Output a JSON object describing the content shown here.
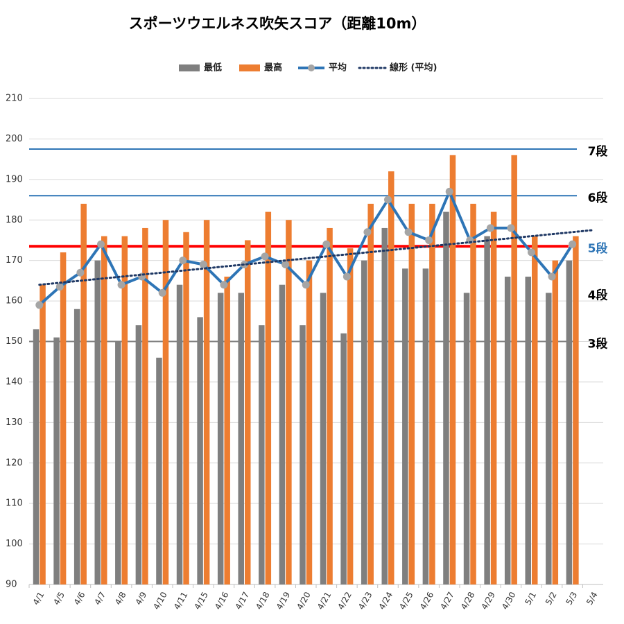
{
  "chart_data": {
    "type": "bar",
    "title": "スポーツウエルネス吹矢スコア（距離10m）",
    "categories": [
      "4/1",
      "4/5",
      "4/6",
      "4/7",
      "4/8",
      "4/9",
      "4/10",
      "4/11",
      "4/15",
      "4/16",
      "4/17",
      "4/18",
      "4/19",
      "4/20",
      "4/21",
      "4/22",
      "4/23",
      "4/24",
      "4/25",
      "4/26",
      "4/27",
      "4/28",
      "4/29",
      "4/30",
      "5/1",
      "5/2",
      "5/3",
      "5/4"
    ],
    "series": [
      {
        "name": "最低",
        "type": "bar",
        "color": "#7f7f7f",
        "values": [
          153,
          151,
          158,
          170,
          150,
          154,
          146,
          164,
          156,
          162,
          162,
          154,
          164,
          154,
          162,
          152,
          170,
          178,
          168,
          168,
          182,
          162,
          176,
          166,
          166,
          162,
          170,
          null
        ]
      },
      {
        "name": "最高",
        "type": "bar",
        "color": "#ed7d31",
        "values": [
          164,
          172,
          184,
          176,
          176,
          178,
          180,
          177,
          180,
          166,
          175,
          182,
          180,
          170,
          178,
          173,
          184,
          192,
          184,
          184,
          196,
          184,
          182,
          196,
          176,
          170,
          176,
          null
        ]
      },
      {
        "name": "平均",
        "type": "line",
        "color": "#2e75b6",
        "marker_color": "#a5a5a5",
        "values": [
          159,
          163.5,
          167,
          174,
          164,
          166,
          162,
          170,
          169,
          164,
          169,
          171,
          169,
          164,
          174,
          166,
          177,
          185,
          177,
          175,
          187,
          175,
          178,
          178,
          172,
          166,
          174,
          null
        ]
      },
      {
        "name": "線形 (平均)",
        "type": "trend",
        "color": "#1f3864",
        "values": [
          164,
          164.5,
          165,
          165.5,
          166,
          166.5,
          167,
          167.5,
          168,
          168.5,
          169,
          169.5,
          170,
          170.5,
          171,
          171.5,
          172,
          172.5,
          173,
          173.5,
          174,
          174.5,
          175,
          175.5,
          176,
          176.5,
          177,
          177.5
        ]
      }
    ],
    "reference_lines": [
      {
        "label": "7段",
        "value": 197.5,
        "line_color": "#2e75b6",
        "label_color": "#000000"
      },
      {
        "label": "6段",
        "value": 186,
        "line_color": "#2e75b6",
        "label_color": "#000000"
      },
      {
        "label": "5段",
        "value": 173.5,
        "line_color": "#ff0000",
        "label_color": "#2e75b6"
      },
      {
        "label": "4段",
        "value": 162,
        "line_color": null,
        "label_color": "#000000"
      },
      {
        "label": "3段",
        "value": 150,
        "line_color": "#7f7f7f",
        "label_color": "#000000"
      }
    ],
    "ylim": [
      90,
      210
    ],
    "yticks": [
      90,
      100,
      110,
      120,
      130,
      140,
      150,
      160,
      170,
      180,
      190,
      200,
      210
    ],
    "grid": true
  }
}
